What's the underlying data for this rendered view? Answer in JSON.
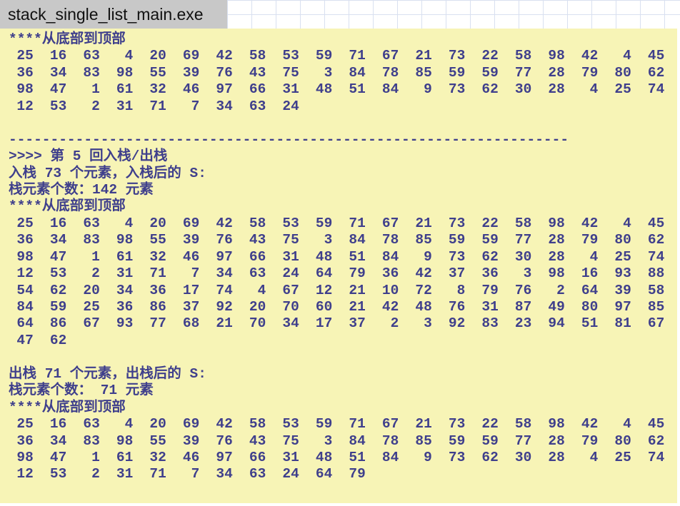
{
  "window": {
    "title": "stack_single_list_main.exe"
  },
  "colors": {
    "console_bg": "#f7f4b6",
    "text": "#3f3f8c",
    "title_bar_bg": "#c8c8c8"
  },
  "console": {
    "block1": {
      "header": "****从底部到顶部",
      "rows": [
        [
          25,
          16,
          63,
          4,
          20,
          69,
          42,
          58,
          53,
          59,
          71,
          67,
          21,
          73,
          22,
          58,
          98,
          42,
          4,
          45
        ],
        [
          36,
          34,
          83,
          98,
          55,
          39,
          76,
          43,
          75,
          3,
          84,
          78,
          85,
          59,
          59,
          77,
          28,
          79,
          80,
          62
        ],
        [
          98,
          47,
          1,
          61,
          32,
          46,
          97,
          66,
          31,
          48,
          51,
          84,
          9,
          73,
          62,
          30,
          28,
          4,
          25,
          74
        ],
        [
          12,
          53,
          2,
          31,
          71,
          7,
          34,
          63,
          24
        ]
      ]
    },
    "separator": "-------------------------------------------------------------------",
    "round_line": ">>>> 第 5 回入栈/出栈",
    "push_line": "入栈 73 个元素，入栈后的 S:",
    "push_count_line": "栈元素个数：142 元素",
    "block2": {
      "header": "****从底部到顶部",
      "rows": [
        [
          25,
          16,
          63,
          4,
          20,
          69,
          42,
          58,
          53,
          59,
          71,
          67,
          21,
          73,
          22,
          58,
          98,
          42,
          4,
          45
        ],
        [
          36,
          34,
          83,
          98,
          55,
          39,
          76,
          43,
          75,
          3,
          84,
          78,
          85,
          59,
          59,
          77,
          28,
          79,
          80,
          62
        ],
        [
          98,
          47,
          1,
          61,
          32,
          46,
          97,
          66,
          31,
          48,
          51,
          84,
          9,
          73,
          62,
          30,
          28,
          4,
          25,
          74
        ],
        [
          12,
          53,
          2,
          31,
          71,
          7,
          34,
          63,
          24,
          64,
          79,
          36,
          42,
          37,
          36,
          3,
          98,
          16,
          93,
          88
        ],
        [
          54,
          62,
          20,
          34,
          36,
          17,
          74,
          4,
          67,
          12,
          21,
          10,
          72,
          8,
          79,
          76,
          2,
          64,
          39,
          58
        ],
        [
          84,
          59,
          25,
          36,
          86,
          37,
          92,
          20,
          70,
          60,
          21,
          42,
          48,
          76,
          31,
          87,
          49,
          80,
          97,
          85
        ],
        [
          64,
          86,
          67,
          93,
          77,
          68,
          21,
          70,
          34,
          17,
          37,
          2,
          3,
          92,
          83,
          23,
          94,
          51,
          81,
          67
        ],
        [
          47,
          62
        ]
      ]
    },
    "pop_line": "出栈 71 个元素，出栈后的 S:",
    "pop_count_line": "栈元素个数： 71 元素",
    "block3": {
      "header": "****从底部到顶部",
      "rows": [
        [
          25,
          16,
          63,
          4,
          20,
          69,
          42,
          58,
          53,
          59,
          71,
          67,
          21,
          73,
          22,
          58,
          98,
          42,
          4,
          45
        ],
        [
          36,
          34,
          83,
          98,
          55,
          39,
          76,
          43,
          75,
          3,
          84,
          78,
          85,
          59,
          59,
          77,
          28,
          79,
          80,
          62
        ],
        [
          98,
          47,
          1,
          61,
          32,
          46,
          97,
          66,
          31,
          48,
          51,
          84,
          9,
          73,
          62,
          30,
          28,
          4,
          25,
          74
        ],
        [
          12,
          53,
          2,
          31,
          71,
          7,
          34,
          63,
          24,
          64,
          79
        ]
      ]
    }
  }
}
